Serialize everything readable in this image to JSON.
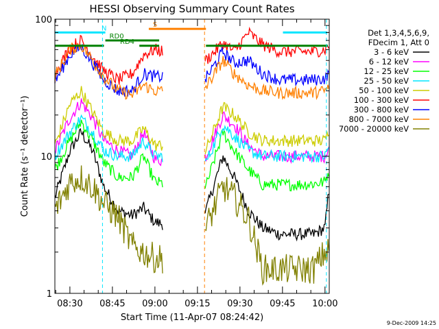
{
  "chart_data": {
    "type": "line",
    "title": "HESSI Observing Summary Count Rates",
    "xlabel": "Start Time (11-Apr-07 08:24:42)",
    "ylabel": "Count Rate (s⁻¹ detector⁻¹)",
    "y_scale": "log",
    "ylim": [
      1,
      100
    ],
    "xlim": [
      "08:24:42",
      "10:01:30"
    ],
    "x_ticks": [
      "08:30",
      "08:45",
      "09:00",
      "09:15",
      "09:30",
      "09:45",
      "10:00"
    ],
    "y_ticks": [
      "1",
      "10",
      "100"
    ],
    "legend_header": [
      "Det 1,3,4,5,6,9,",
      "FDecim 1, Att 0"
    ],
    "legend_position": "outside-right",
    "date_stamp": "9-Dec-2009 14:25",
    "flag_bars": [
      {
        "label": "N",
        "color": "#00e5ff",
        "level": 80,
        "spans": [
          [
            "08:24:42",
            "08:42:30"
          ],
          [
            "09:45:10",
            "10:00:50"
          ]
        ]
      },
      {
        "label": "RD0",
        "color": "#008000",
        "level": 70,
        "spans": [
          [
            "08:42:30",
            "09:01:30"
          ]
        ]
      },
      {
        "label": "RD4",
        "color": "#008000",
        "level": 64,
        "spans": [
          [
            "08:24:42",
            "08:42:00"
          ],
          [
            "08:54:30",
            "09:01:30"
          ],
          [
            "09:18:00",
            "10:01:00"
          ]
        ]
      },
      {
        "label": "S",
        "color": "#ff8000",
        "level": 85,
        "spans": [
          [
            "08:57:50",
            "09:18:00"
          ]
        ]
      }
    ],
    "vertical_markers": [
      {
        "color": "#00e5ff",
        "time": "08:41:30"
      },
      {
        "color": "#ff8000",
        "time": "09:17:30"
      },
      {
        "color": "#00e5ff",
        "time": "10:00:30"
      }
    ],
    "gaps": [
      [
        "09:03:00",
        "09:17:30"
      ]
    ],
    "series": [
      {
        "name": "3 - 6 keV",
        "color": "#000000",
        "points": [
          [
            "08:24:42",
            5
          ],
          [
            "08:30",
            11
          ],
          [
            "08:34",
            15
          ],
          [
            "08:38",
            11
          ],
          [
            "08:42",
            6
          ],
          [
            "08:47",
            4
          ],
          [
            "08:52",
            3.7
          ],
          [
            "08:56",
            4.2
          ],
          [
            "09:00",
            3.3
          ],
          [
            "09:03",
            3.2
          ],
          [
            "09:18",
            4
          ],
          [
            "09:24",
            10
          ],
          [
            "09:28",
            7
          ],
          [
            "09:33",
            4
          ],
          [
            "09:38",
            3
          ],
          [
            "09:44",
            2.7
          ],
          [
            "09:50",
            2.7
          ],
          [
            "09:56",
            2.7
          ],
          [
            "10:00",
            3
          ],
          [
            "10:01:30",
            6
          ]
        ]
      },
      {
        "name": "6 - 12 keV",
        "color": "#ff00ff",
        "points": [
          [
            "08:24:42",
            11
          ],
          [
            "08:30",
            19
          ],
          [
            "08:34",
            25
          ],
          [
            "08:38",
            19
          ],
          [
            "08:42",
            13
          ],
          [
            "08:47",
            11
          ],
          [
            "08:52",
            10
          ],
          [
            "08:56",
            15
          ],
          [
            "09:00",
            9.5
          ],
          [
            "09:03",
            9.3
          ],
          [
            "09:18",
            10
          ],
          [
            "09:24",
            20
          ],
          [
            "09:28",
            17
          ],
          [
            "09:33",
            12
          ],
          [
            "09:38",
            10
          ],
          [
            "09:44",
            10
          ],
          [
            "09:50",
            10
          ],
          [
            "09:56",
            10
          ],
          [
            "10:00",
            10
          ],
          [
            "10:01:30",
            12
          ]
        ]
      },
      {
        "name": "12 - 25 keV",
        "color": "#00ff00",
        "points": [
          [
            "08:24:42",
            8
          ],
          [
            "08:30",
            13
          ],
          [
            "08:34",
            18
          ],
          [
            "08:38",
            13
          ],
          [
            "08:42",
            9
          ],
          [
            "08:47",
            7
          ],
          [
            "08:52",
            7
          ],
          [
            "08:56",
            10
          ],
          [
            "09:00",
            6.5
          ],
          [
            "09:03",
            6.3
          ],
          [
            "09:18",
            6
          ],
          [
            "09:24",
            15
          ],
          [
            "09:28",
            11
          ],
          [
            "09:33",
            8
          ],
          [
            "09:38",
            6.2
          ],
          [
            "09:44",
            6.2
          ],
          [
            "09:50",
            6.2
          ],
          [
            "09:56",
            6.3
          ],
          [
            "10:00",
            6.5
          ],
          [
            "10:01:30",
            8
          ]
        ]
      },
      {
        "name": "25 - 50 keV",
        "color": "#00e5ff",
        "points": [
          [
            "08:24:42",
            10
          ],
          [
            "08:30",
            15
          ],
          [
            "08:34",
            19
          ],
          [
            "08:38",
            15
          ],
          [
            "08:42",
            11
          ],
          [
            "08:47",
            10
          ],
          [
            "08:52",
            10
          ],
          [
            "08:56",
            13
          ],
          [
            "09:00",
            10
          ],
          [
            "09:03",
            10
          ],
          [
            "09:18",
            9
          ],
          [
            "09:24",
            17
          ],
          [
            "09:28",
            14
          ],
          [
            "09:33",
            11
          ],
          [
            "09:38",
            10
          ],
          [
            "09:44",
            10
          ],
          [
            "09:50",
            10
          ],
          [
            "09:56",
            10
          ],
          [
            "10:00",
            10
          ],
          [
            "10:01:30",
            12
          ]
        ]
      },
      {
        "name": "50 - 100 keV",
        "color": "#cccc00",
        "points": [
          [
            "08:24:42",
            12
          ],
          [
            "08:30",
            24
          ],
          [
            "08:34",
            30
          ],
          [
            "08:38",
            21
          ],
          [
            "08:42",
            15
          ],
          [
            "08:47",
            13
          ],
          [
            "08:52",
            13
          ],
          [
            "08:56",
            16
          ],
          [
            "09:00",
            12
          ],
          [
            "09:03",
            12
          ],
          [
            "09:18",
            11
          ],
          [
            "09:24",
            23
          ],
          [
            "09:28",
            20
          ],
          [
            "09:33",
            15
          ],
          [
            "09:38",
            13
          ],
          [
            "09:44",
            13
          ],
          [
            "09:50",
            13
          ],
          [
            "09:56",
            13
          ],
          [
            "10:00",
            13
          ],
          [
            "10:01:30",
            16
          ]
        ]
      },
      {
        "name": "100 - 300 keV",
        "color": "#ff0000",
        "points": [
          [
            "08:24:42",
            40
          ],
          [
            "08:30",
            62
          ],
          [
            "08:34",
            70
          ],
          [
            "08:38",
            54
          ],
          [
            "08:42",
            42
          ],
          [
            "08:47",
            36
          ],
          [
            "08:52",
            40
          ],
          [
            "08:56",
            55
          ],
          [
            "09:00",
            60
          ],
          [
            "09:03",
            58
          ],
          [
            "09:18",
            50
          ],
          [
            "09:24",
            67
          ],
          [
            "09:28",
            58
          ],
          [
            "09:33",
            80
          ],
          [
            "09:38",
            65
          ],
          [
            "09:44",
            58
          ],
          [
            "09:50",
            58
          ],
          [
            "09:56",
            58
          ],
          [
            "10:00",
            60
          ],
          [
            "10:01:30",
            65
          ]
        ]
      },
      {
        "name": "300 - 800 keV",
        "color": "#0000ff",
        "points": [
          [
            "08:24:42",
            35
          ],
          [
            "08:30",
            55
          ],
          [
            "08:34",
            63
          ],
          [
            "08:38",
            48
          ],
          [
            "08:42",
            36
          ],
          [
            "08:47",
            30
          ],
          [
            "08:52",
            30
          ],
          [
            "08:56",
            40
          ],
          [
            "09:00",
            38
          ],
          [
            "09:03",
            38
          ],
          [
            "09:18",
            37
          ],
          [
            "09:24",
            58
          ],
          [
            "09:28",
            48
          ],
          [
            "09:33",
            50
          ],
          [
            "09:38",
            40
          ],
          [
            "09:44",
            36
          ],
          [
            "09:50",
            36
          ],
          [
            "09:56",
            36
          ],
          [
            "10:00",
            37
          ],
          [
            "10:01:30",
            40
          ]
        ]
      },
      {
        "name": "800 - 7000 keV",
        "color": "#ff8000",
        "points": [
          [
            "08:24:42",
            38
          ],
          [
            "08:30",
            60
          ],
          [
            "08:34",
            65
          ],
          [
            "08:38",
            50
          ],
          [
            "08:42",
            38
          ],
          [
            "08:47",
            30
          ],
          [
            "08:52",
            28
          ],
          [
            "08:56",
            33
          ],
          [
            "09:00",
            30
          ],
          [
            "09:03",
            30
          ],
          [
            "09:18",
            32
          ],
          [
            "09:24",
            50
          ],
          [
            "09:28",
            40
          ],
          [
            "09:33",
            33
          ],
          [
            "09:38",
            30
          ],
          [
            "09:44",
            29
          ],
          [
            "09:50",
            29
          ],
          [
            "09:56",
            29
          ],
          [
            "10:00",
            30
          ],
          [
            "10:01:30",
            32
          ]
        ]
      },
      {
        "name": "7000 - 20000 keV",
        "color": "#808000",
        "points": [
          [
            "08:24:42",
            4
          ],
          [
            "08:30",
            6.5
          ],
          [
            "08:34",
            7
          ],
          [
            "08:38",
            6
          ],
          [
            "08:42",
            4.5
          ],
          [
            "08:47",
            3.6
          ],
          [
            "08:52",
            2.2
          ],
          [
            "08:56",
            2
          ],
          [
            "09:00",
            1.8
          ],
          [
            "09:03",
            1.8
          ],
          [
            "09:18",
            3
          ],
          [
            "09:24",
            6
          ],
          [
            "09:28",
            5
          ],
          [
            "09:33",
            3.5
          ],
          [
            "09:38",
            1.5
          ],
          [
            "09:44",
            1.5
          ],
          [
            "09:50",
            1.5
          ],
          [
            "09:56",
            1.5
          ],
          [
            "10:00",
            2
          ],
          [
            "10:01:30",
            2
          ]
        ]
      }
    ]
  }
}
